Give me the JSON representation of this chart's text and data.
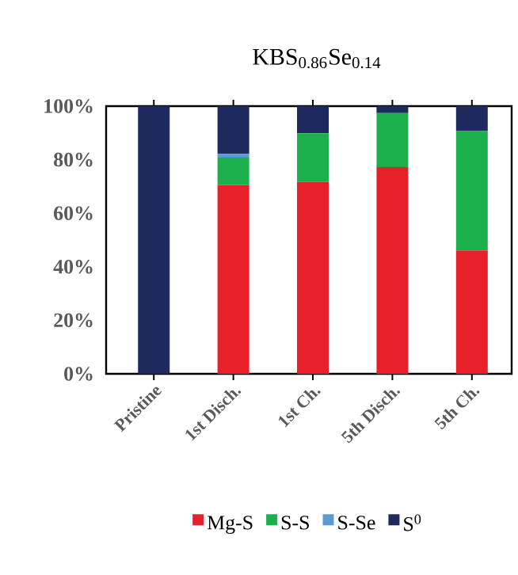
{
  "chart_data": {
    "type": "bar",
    "stacked": true,
    "title": "KBS$_{0.86}$Se$_{0.14}$",
    "categories": [
      "Pristine",
      "1st Disch.",
      "1st Ch.",
      "5th Disch.",
      "5th Ch."
    ],
    "series": [
      {
        "name": "Mg-S",
        "color": "#e8202a",
        "values": [
          0,
          70.5,
          71.7,
          77.2,
          46.1
        ]
      },
      {
        "name": "S-S",
        "color": "#1cb04d",
        "values": [
          0,
          10.3,
          18.2,
          20.2,
          44.6
        ]
      },
      {
        "name": "S-Se",
        "color": "#5b9bd5",
        "values": [
          0,
          1.4,
          0,
          0,
          0
        ]
      },
      {
        "name": "S$^{0}$",
        "color": "#1e2a5e",
        "values": [
          100,
          17.8,
          10.1,
          2.6,
          9.3
        ]
      }
    ],
    "ylim": [
      0,
      100
    ],
    "yticks": [
      {
        "value": 0,
        "label": "0%"
      },
      {
        "value": 20,
        "label": "20%"
      },
      {
        "value": 40,
        "label": "40%"
      },
      {
        "value": 60,
        "label": "60%"
      },
      {
        "value": 80,
        "label": "80%"
      },
      {
        "value": 100,
        "label": "100%"
      }
    ],
    "legend": "bottom"
  }
}
